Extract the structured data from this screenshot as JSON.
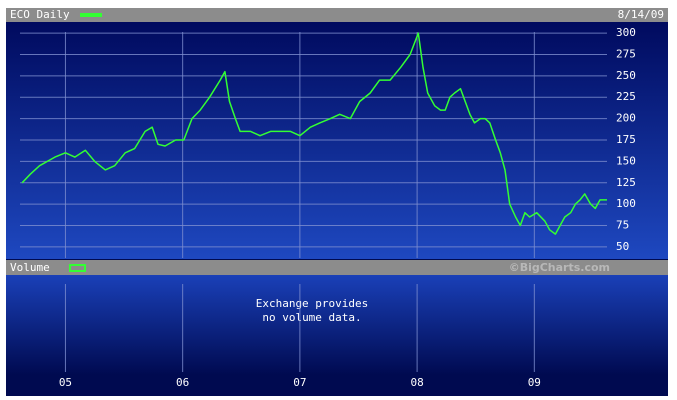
{
  "chart_data": {
    "type": "line",
    "title": "ECO Daily",
    "date_label": "8/14/09",
    "volume_label": "Volume",
    "volume_note": [
      "Exchange provides",
      "no volume data."
    ],
    "watermark": "©BigCharts.com",
    "x": [
      2004.63,
      2004.7,
      2004.78,
      2004.91,
      2005.0,
      2005.08,
      2005.17,
      2005.25,
      2005.34,
      2005.42,
      2005.51,
      2005.59,
      2005.68,
      2005.74,
      2005.79,
      2005.85,
      2005.94,
      2006.01,
      2006.08,
      2006.15,
      2006.23,
      2006.32,
      2006.36,
      2006.4,
      2006.45,
      2006.49,
      2006.58,
      2006.66,
      2006.75,
      2006.83,
      2006.92,
      2007.0,
      2007.09,
      2007.17,
      2007.26,
      2007.34,
      2007.43,
      2007.51,
      2007.6,
      2007.68,
      2007.77,
      2007.86,
      2007.94,
      2008.01,
      2008.05,
      2008.09,
      2008.15,
      2008.2,
      2008.24,
      2008.28,
      2008.32,
      2008.37,
      2008.41,
      2008.45,
      2008.49,
      2008.54,
      2008.58,
      2008.62,
      2008.67,
      2008.71,
      2008.75,
      2008.79,
      2008.84,
      2008.88,
      2008.92,
      2008.96,
      2009.02,
      2009.09,
      2009.13,
      2009.18,
      2009.22,
      2009.26,
      2009.31,
      2009.35,
      2009.39,
      2009.43,
      2009.48,
      2009.52,
      2009.56,
      2009.62
    ],
    "series": [
      {
        "name": "ECO Daily",
        "color": "#33ff33",
        "values": [
          125,
          135,
          145,
          155,
          160,
          155,
          163,
          150,
          140,
          145,
          160,
          165,
          185,
          190,
          170,
          168,
          175,
          175,
          200,
          210,
          225,
          245,
          255,
          220,
          200,
          185,
          185,
          180,
          185,
          185,
          185,
          180,
          190,
          195,
          200,
          205,
          200,
          220,
          230,
          245,
          245,
          260,
          275,
          300,
          260,
          230,
          215,
          210,
          210,
          225,
          230,
          235,
          220,
          205,
          195,
          200,
          200,
          195,
          175,
          160,
          140,
          100,
          85,
          75,
          90,
          85,
          90,
          80,
          70,
          65,
          75,
          85,
          90,
          100,
          105,
          112,
          100,
          95,
          105,
          105
        ]
      }
    ],
    "xlim": [
      2004.51,
      2009.62
    ],
    "xticks": [
      {
        "value": 2005,
        "label": "05"
      },
      {
        "value": 2006,
        "label": "06"
      },
      {
        "value": 2007,
        "label": "07"
      },
      {
        "value": 2008,
        "label": "08"
      },
      {
        "value": 2009,
        "label": "09"
      }
    ],
    "ylim": [
      37,
      313
    ],
    "yticks": [
      50,
      75,
      100,
      125,
      150,
      175,
      200,
      225,
      250,
      275,
      300
    ],
    "grid": true
  }
}
